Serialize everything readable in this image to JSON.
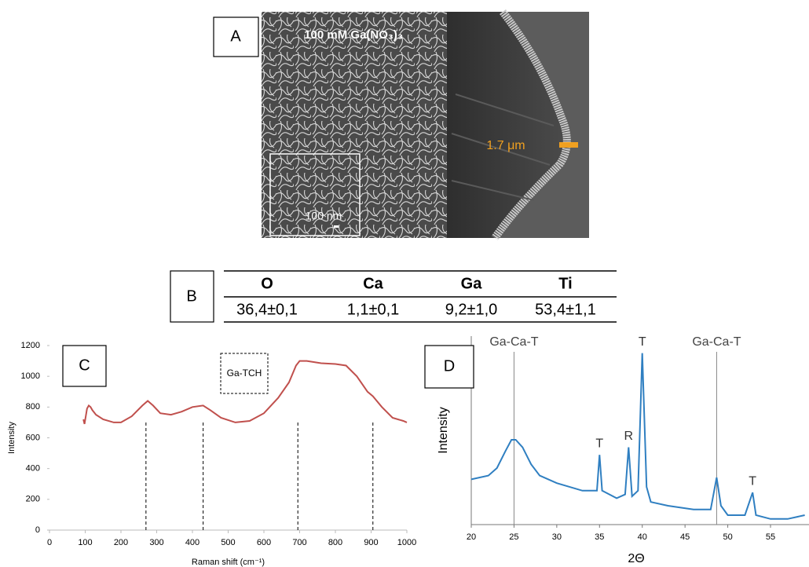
{
  "panel_a": {
    "label": "A",
    "caption": "100 mM Ga(NO₃)₃",
    "scale_bar": "100 nm",
    "thickness": "1.7 μm"
  },
  "panel_b": {
    "label": "B",
    "table": {
      "header": [
        "O",
        "Ca",
        "Ga",
        "Ti"
      ],
      "rows": [
        [
          "36,4±0,1",
          "1,1±0,1",
          "9,2±1,0",
          "53,4±1,1"
        ]
      ]
    }
  },
  "chart_data": [
    {
      "type": "line",
      "panel_label": "C",
      "annotation": "Ga-TCH",
      "xlabel": "Raman shift (cm⁻¹)",
      "ylabel": "Intensity",
      "x": [
        95,
        98,
        105,
        110,
        115,
        120,
        130,
        150,
        180,
        200,
        230,
        260,
        275,
        290,
        310,
        340,
        370,
        400,
        430,
        450,
        480,
        520,
        560,
        600,
        640,
        670,
        690,
        700,
        720,
        760,
        800,
        830,
        860,
        890,
        905,
        930,
        960,
        990,
        1000
      ],
      "series": [
        {
          "color": "#c0504d",
          "values": [
            720,
            690,
            790,
            810,
            800,
            780,
            750,
            720,
            700,
            700,
            740,
            810,
            840,
            810,
            760,
            750,
            770,
            800,
            810,
            780,
            730,
            700,
            710,
            760,
            860,
            960,
            1070,
            1100,
            1100,
            1085,
            1080,
            1070,
            1000,
            900,
            870,
            800,
            730,
            710,
            700
          ]
        }
      ],
      "markers_x": [
        270,
        430,
        695,
        905
      ],
      "xlim": [
        0,
        1000
      ],
      "xticks": [
        0,
        100,
        200,
        300,
        400,
        500,
        600,
        700,
        800,
        900,
        1000
      ],
      "ylim": [
        0,
        1200
      ],
      "yticks": [
        0,
        200,
        400,
        600,
        800,
        1000,
        1200
      ]
    },
    {
      "type": "line",
      "panel_label": "D",
      "xlabel": "2Θ",
      "ylabel": "Intensity",
      "x": [
        20,
        22,
        23,
        24,
        24.7,
        25.2,
        26,
        27,
        28,
        30,
        33,
        34.7,
        35,
        35.3,
        37,
        38,
        38.4,
        38.8,
        39.5,
        40,
        40.5,
        41,
        43,
        46,
        48,
        48.7,
        49.2,
        50,
        52,
        52.9,
        53.3,
        55,
        57,
        59
      ],
      "series": [
        {
          "color": "#2f7fc1",
          "values": [
            24,
            26,
            30,
            39,
            45,
            45,
            41,
            32,
            26,
            22,
            18,
            18,
            37,
            18,
            14,
            16,
            41,
            15,
            18,
            91,
            20,
            12,
            10,
            8,
            8,
            25,
            10,
            5,
            5,
            17,
            5,
            3,
            3,
            5
          ]
        }
      ],
      "reference_lines": [
        {
          "label": "Ga-Ca-T",
          "x": 25
        },
        {
          "label": "Ga-Ca-T",
          "x": 48.7
        }
      ],
      "peaks": [
        {
          "label": "T",
          "x": 35
        },
        {
          "label": "R",
          "x": 38.4
        },
        {
          "label": "T",
          "x": 40
        },
        {
          "label": "T",
          "x": 52.9
        }
      ],
      "xlim": [
        20,
        59.5
      ],
      "xticks": [
        20,
        25,
        30,
        35,
        40,
        45,
        50,
        55
      ],
      "ylim": [
        0,
        100
      ]
    }
  ]
}
